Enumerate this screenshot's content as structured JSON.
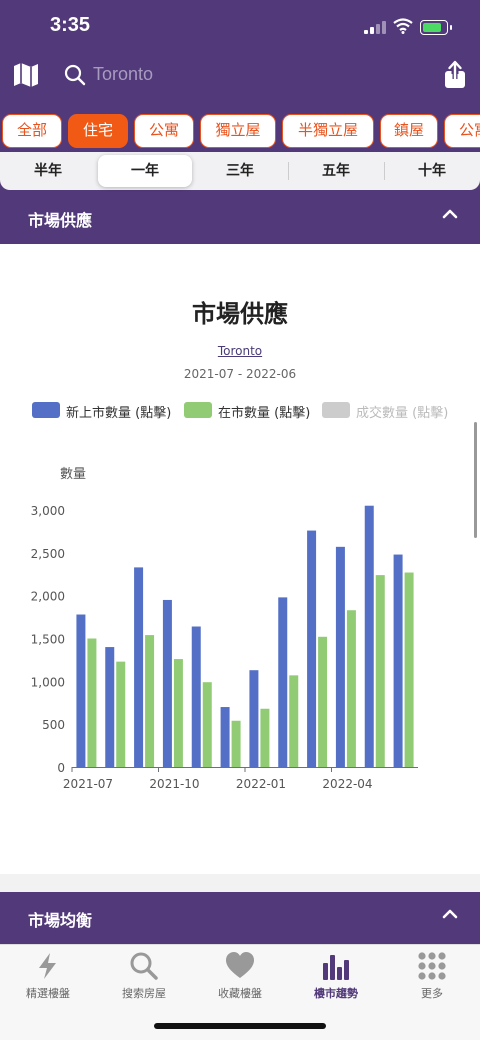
{
  "status": {
    "time": "3:35"
  },
  "search": {
    "placeholder": "Toronto"
  },
  "categories": [
    "全部",
    "住宅",
    "公寓",
    "獨立屋",
    "半獨立屋",
    "鎮屋",
    "公寓"
  ],
  "active_category": "住宅",
  "periods": [
    "半年",
    "一年",
    "三年",
    "五年",
    "十年"
  ],
  "active_period": "一年",
  "section1": {
    "title": "市場供應"
  },
  "card": {
    "title": "市場供應",
    "location": "Toronto",
    "range": "2021-07 - 2022-06"
  },
  "legend": [
    {
      "label": "新上市數量 (點擊)",
      "color": "#5470c6"
    },
    {
      "label": "在市數量 (點擊)",
      "color": "#91cc75"
    },
    {
      "label": "成交數量 (點擊)",
      "color": "#cccccc"
    }
  ],
  "chart_data": {
    "type": "bar",
    "ylabel": "數量",
    "ylim": [
      0,
      3000
    ],
    "yticks": [
      "0",
      "500",
      "1,000",
      "1,500",
      "2,000",
      "2,500",
      "3,000"
    ],
    "xtick_labels": [
      "2021-07",
      "2021-10",
      "2022-01",
      "2022-04"
    ],
    "categories": [
      "2021-07",
      "2021-08",
      "2021-09",
      "2021-10",
      "2021-11",
      "2021-12",
      "2022-01",
      "2022-02",
      "2022-03",
      "2022-04",
      "2022-05",
      "2022-06"
    ],
    "series": [
      {
        "name": "新上市數量 (點擊)",
        "color": "#5470c6",
        "values": [
          1780,
          1400,
          2330,
          1950,
          1640,
          700,
          1130,
          1980,
          2760,
          2570,
          3050,
          2480
        ]
      },
      {
        "name": "在市數量 (點擊)",
        "color": "#91cc75",
        "values": [
          1500,
          1230,
          1540,
          1260,
          990,
          540,
          680,
          1070,
          1520,
          1830,
          2240,
          2270
        ]
      }
    ]
  },
  "section2": {
    "title": "市場均衡"
  },
  "tabs": [
    {
      "label": "精選樓盤",
      "icon": "bolt-icon"
    },
    {
      "label": "搜索房屋",
      "icon": "search-icon"
    },
    {
      "label": "收藏樓盤",
      "icon": "heart-icon"
    },
    {
      "label": "樓市趨勢",
      "icon": "bar-chart-icon"
    },
    {
      "label": "更多",
      "icon": "grid-dots-icon"
    }
  ],
  "active_tab": "樓市趨勢",
  "colors": {
    "brand": "#52397a",
    "accent": "#f05a14"
  }
}
